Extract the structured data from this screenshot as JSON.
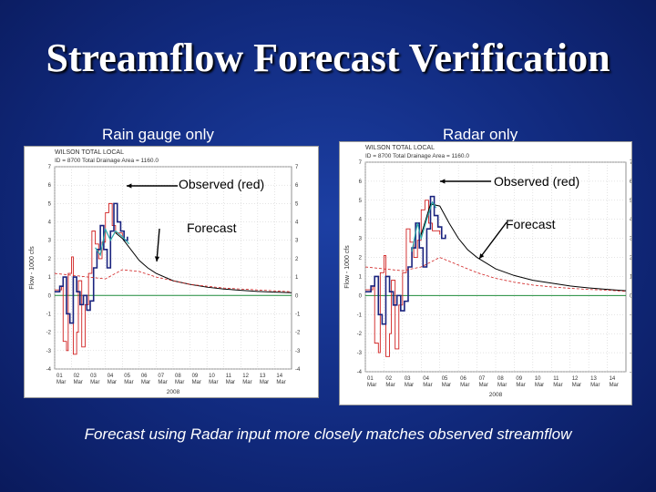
{
  "title": "Streamflow Forecast Verification",
  "caption": "Forecast using Radar input more closely matches observed streamflow",
  "colors": {
    "observed": "#d02020",
    "forecast": "#000000",
    "stepped": "#1a237e",
    "teal": "#2aa7a7",
    "zero": "#1e8c3a",
    "grid": "#c8c8c8"
  },
  "chart_data": [
    {
      "type": "line",
      "panel_label": "Rain gauge only",
      "header_line1": "WILSON TOTAL LOCAL",
      "header_line2": "ID = 8700  Total Drainage Area = 1160.0",
      "ylabel": "Flow - 1000 cfs",
      "xlabel": "2008",
      "ylim": [
        -4,
        7
      ],
      "yticks": [
        "7",
        "6",
        "5",
        "4",
        "3",
        "2",
        "1",
        "0",
        "-1",
        "-2",
        "-3",
        "-4"
      ],
      "xlim": [
        1,
        15
      ],
      "xticks": [
        "01\nMar",
        "02\nMar",
        "03\nMar",
        "04\nMar",
        "05\nMar",
        "06\nMar",
        "07\nMar",
        "08\nMar",
        "09\nMar",
        "10\nMar",
        "11\nMar",
        "12\nMar",
        "13\nMar",
        "14\nMar"
      ],
      "callouts": {
        "observed": "Observed (red)",
        "forecast": "Forecast"
      },
      "series": [
        {
          "role": "observed",
          "x": [
            1.0,
            1.4,
            1.5,
            1.7,
            1.8,
            2.0,
            2.1,
            2.3,
            2.4,
            2.6,
            2.8,
            3.0,
            3.2,
            3.4,
            3.6,
            3.8,
            4.0,
            4.2,
            4.4,
            4.6,
            5.0
          ],
          "y": [
            0.3,
            0.5,
            -2.5,
            -3.0,
            1.2,
            2.1,
            -3.2,
            -2.0,
            0.8,
            -2.8,
            -0.5,
            1.2,
            3.5,
            2.8,
            2.0,
            2.9,
            4.5,
            5.0,
            3.8,
            3.4,
            3.2
          ]
        },
        {
          "role": "stepped",
          "x": [
            1.0,
            1.3,
            1.5,
            1.7,
            1.9,
            2.1,
            2.3,
            2.5,
            2.7,
            2.9,
            3.1,
            3.3,
            3.5,
            3.7,
            3.9,
            4.1,
            4.3,
            4.5,
            4.7,
            4.9,
            5.1,
            5.3
          ],
          "y": [
            0.2,
            0.5,
            1.0,
            -1.0,
            -1.5,
            1.0,
            0.2,
            -0.5,
            0.0,
            -0.8,
            -0.3,
            1.5,
            2.5,
            3.8,
            2.5,
            1.5,
            3.5,
            5.0,
            4.0,
            3.5,
            3.0,
            3.2
          ]
        },
        {
          "role": "forecast",
          "x": [
            4.6,
            5.0,
            5.5,
            6.0,
            6.5,
            7.0,
            8.0,
            9.0,
            10.0,
            11.0,
            12.0,
            13.0,
            14.0,
            15.0
          ],
          "y": [
            3.4,
            3.1,
            2.5,
            1.9,
            1.5,
            1.2,
            0.8,
            0.6,
            0.45,
            0.35,
            0.28,
            0.22,
            0.18,
            0.15
          ]
        },
        {
          "role": "teal",
          "x": [
            3.4,
            3.7,
            4.0,
            4.3,
            4.6,
            5.0,
            5.4
          ],
          "y": [
            2.6,
            2.2,
            3.6,
            3.0,
            3.5,
            3.2,
            2.8
          ]
        },
        {
          "role": "dashed",
          "x": [
            1.0,
            2.0,
            3.0,
            4.0,
            5.0,
            6.0,
            7.0,
            8.0,
            9.0,
            10.0,
            11.0,
            12.0,
            13.0,
            14.0,
            15.0
          ],
          "y": [
            1.2,
            1.1,
            1.0,
            0.9,
            1.4,
            1.3,
            1.0,
            0.8,
            0.6,
            0.5,
            0.4,
            0.35,
            0.3,
            0.25,
            0.2
          ]
        }
      ]
    },
    {
      "type": "line",
      "panel_label": "Radar only",
      "header_line1": "WILSON TOTAL LOCAL",
      "header_line2": "ID = 8700  Total Drainage Area = 1160.0",
      "ylabel": "Flow - 1000 cfs",
      "xlabel": "2008",
      "ylim": [
        -4,
        7
      ],
      "yticks": [
        "7",
        "6",
        "5",
        "4",
        "3",
        "2",
        "1",
        "0",
        "-1",
        "-2",
        "-3",
        "-4"
      ],
      "xlim": [
        1,
        15
      ],
      "xticks": [
        "01\nMar",
        "02\nMar",
        "03\nMar",
        "04\nMar",
        "05\nMar",
        "06\nMar",
        "07\nMar",
        "08\nMar",
        "09\nMar",
        "10\nMar",
        "11\nMar",
        "12\nMar",
        "13\nMar",
        "14\nMar"
      ],
      "callouts": {
        "observed": "Observed (red)",
        "forecast": "Forecast"
      },
      "series": [
        {
          "role": "observed",
          "x": [
            1.0,
            1.4,
            1.5,
            1.7,
            1.8,
            2.0,
            2.1,
            2.3,
            2.4,
            2.6,
            2.8,
            3.0,
            3.2,
            3.4,
            3.6,
            3.8,
            4.0,
            4.2,
            4.4,
            4.6,
            5.0
          ],
          "y": [
            0.3,
            0.5,
            -2.5,
            -3.0,
            1.2,
            2.1,
            -3.2,
            -2.0,
            0.8,
            -2.8,
            -0.5,
            1.2,
            3.5,
            2.8,
            2.0,
            2.9,
            4.5,
            5.0,
            3.8,
            3.4,
            3.2
          ]
        },
        {
          "role": "stepped",
          "x": [
            1.0,
            1.3,
            1.5,
            1.7,
            1.9,
            2.1,
            2.3,
            2.5,
            2.7,
            2.9,
            3.1,
            3.3,
            3.5,
            3.7,
            3.9,
            4.1,
            4.3,
            4.5,
            4.7,
            4.9,
            5.1,
            5.3
          ],
          "y": [
            0.2,
            0.5,
            1.0,
            -1.0,
            -1.5,
            1.0,
            0.2,
            -0.5,
            0.0,
            -0.8,
            -0.3,
            1.5,
            2.5,
            3.8,
            2.5,
            1.5,
            3.5,
            5.2,
            4.2,
            3.6,
            3.0,
            3.2
          ]
        },
        {
          "role": "forecast",
          "x": [
            4.0,
            4.5,
            5.0,
            5.5,
            6.0,
            6.5,
            7.0,
            8.0,
            9.0,
            10.0,
            11.0,
            12.0,
            13.0,
            14.0,
            15.0
          ],
          "y": [
            3.2,
            4.8,
            4.7,
            3.8,
            3.0,
            2.4,
            2.0,
            1.4,
            1.05,
            0.8,
            0.65,
            0.5,
            0.4,
            0.32,
            0.25
          ]
        },
        {
          "role": "teal",
          "x": [
            3.5,
            3.8,
            4.0,
            4.3,
            4.6,
            4.8
          ],
          "y": [
            2.3,
            3.8,
            3.0,
            4.0,
            4.9,
            4.6
          ]
        },
        {
          "role": "dashed",
          "x": [
            1.0,
            2.0,
            3.0,
            4.0,
            5.0,
            6.0,
            7.0,
            8.0,
            9.0,
            10.0,
            11.0,
            12.0,
            13.0,
            14.0,
            15.0
          ],
          "y": [
            1.5,
            1.4,
            1.3,
            1.5,
            2.0,
            1.6,
            1.2,
            0.9,
            0.7,
            0.55,
            0.45,
            0.38,
            0.32,
            0.28,
            0.22
          ]
        }
      ]
    }
  ]
}
